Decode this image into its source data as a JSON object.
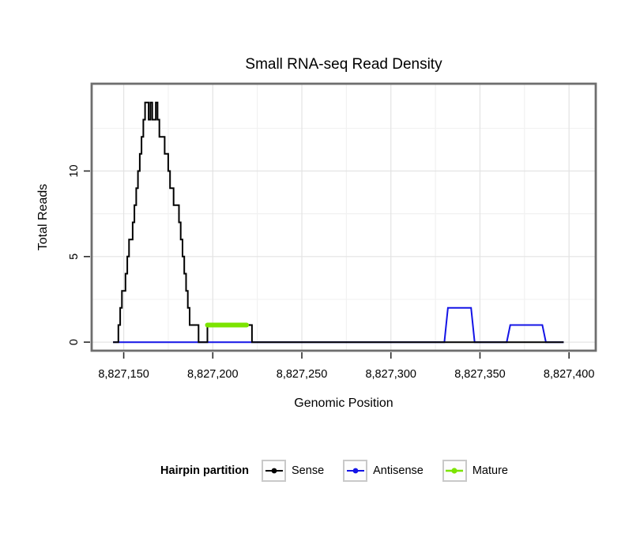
{
  "title": "Small RNA-seq Read Density",
  "chart_data": {
    "type": "line",
    "title": "Small RNA-seq Read Density",
    "xlabel": "Genomic Position",
    "ylabel": "Total Reads",
    "xlim": [
      8827132,
      8827415
    ],
    "ylim": [
      -0.5,
      15.1
    ],
    "grid": true,
    "legend_position": "bottom",
    "legend_title": "Hairpin partition",
    "x_ticks": [
      {
        "v": 8827150,
        "label": "8,827,150"
      },
      {
        "v": 8827200,
        "label": "8,827,200"
      },
      {
        "v": 8827250,
        "label": "8,827,250"
      },
      {
        "v": 8827300,
        "label": "8,827,300"
      },
      {
        "v": 8827350,
        "label": "8,827,350"
      },
      {
        "v": 8827400,
        "label": "8,827,400"
      }
    ],
    "y_ticks": [
      {
        "v": 0,
        "label": "0"
      },
      {
        "v": 5,
        "label": "5"
      },
      {
        "v": 10,
        "label": "10"
      }
    ],
    "series": [
      {
        "name": "Antisense",
        "color": "#1414e6",
        "width": 2,
        "step": false,
        "points": [
          [
            8827144,
            0
          ],
          [
            8827330,
            0
          ],
          [
            8827332,
            2
          ],
          [
            8827345,
            2
          ],
          [
            8827347,
            0
          ],
          [
            8827365,
            0
          ],
          [
            8827367,
            1
          ],
          [
            8827385,
            1
          ],
          [
            8827387,
            0
          ],
          [
            8827397,
            0
          ]
        ]
      },
      {
        "name": "Sense",
        "color": "#000000",
        "width": 2,
        "step": true,
        "points": [
          [
            8827144,
            0
          ],
          [
            8827147,
            1
          ],
          [
            8827148,
            2
          ],
          [
            8827149,
            3
          ],
          [
            8827150,
            3
          ],
          [
            8827151,
            4
          ],
          [
            8827152,
            5
          ],
          [
            8827153,
            6
          ],
          [
            8827154,
            6
          ],
          [
            8827155,
            7
          ],
          [
            8827156,
            8
          ],
          [
            8827157,
            9
          ],
          [
            8827158,
            10
          ],
          [
            8827159,
            11
          ],
          [
            8827160,
            12
          ],
          [
            8827161,
            13
          ],
          [
            8827162,
            14
          ],
          [
            8827163,
            14
          ],
          [
            8827164,
            13
          ],
          [
            8827165,
            14
          ],
          [
            8827166,
            13
          ],
          [
            8827167,
            13
          ],
          [
            8827168,
            14
          ],
          [
            8827169,
            13
          ],
          [
            8827170,
            12
          ],
          [
            8827172,
            12
          ],
          [
            8827173,
            11
          ],
          [
            8827175,
            10
          ],
          [
            8827176,
            9
          ],
          [
            8827177,
            9
          ],
          [
            8827178,
            8
          ],
          [
            8827180,
            8
          ],
          [
            8827181,
            7
          ],
          [
            8827182,
            6
          ],
          [
            8827183,
            5
          ],
          [
            8827184,
            4
          ],
          [
            8827185,
            3
          ],
          [
            8827186,
            2
          ],
          [
            8827187,
            1
          ],
          [
            8827190,
            1
          ],
          [
            8827192,
            0
          ],
          [
            8827196,
            0
          ],
          [
            8827197,
            1
          ],
          [
            8827221,
            1
          ],
          [
            8827222,
            0
          ],
          [
            8827397,
            0
          ]
        ]
      },
      {
        "name": "Mature",
        "color": "#7ce400",
        "width": 6,
        "step": false,
        "points": [
          [
            8827197,
            1
          ],
          [
            8827219,
            1
          ]
        ]
      }
    ],
    "legend": [
      {
        "label": "Sense",
        "color": "#000000"
      },
      {
        "label": "Antisense",
        "color": "#1414e6"
      },
      {
        "label": "Mature",
        "color": "#7ce400"
      }
    ]
  },
  "style_colors": {
    "plot_border": "#6e6e6e",
    "grid_major": "#e3e3e3",
    "grid_minor": "#f1f1f1",
    "tick_mark": "#2b2b2b",
    "tick_label": "#000000"
  }
}
